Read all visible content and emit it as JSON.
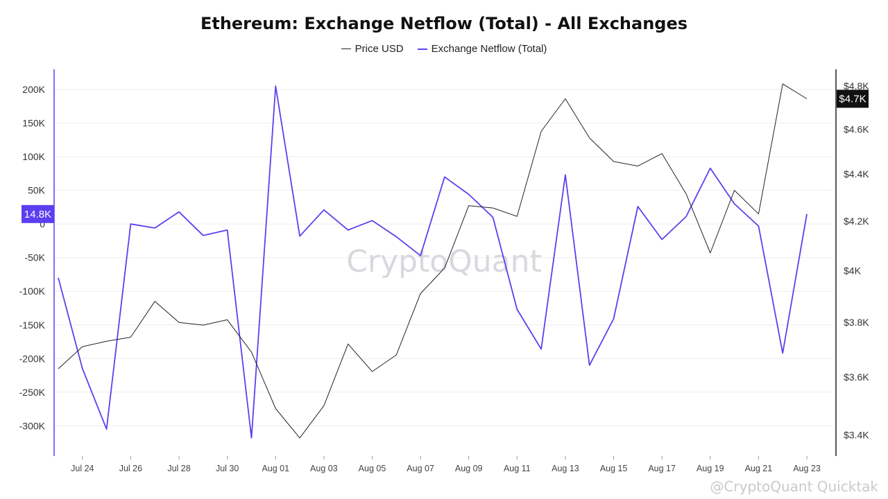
{
  "title": "Ethereum: Exchange Netflow (Total) - All Exchanges",
  "legend": {
    "price": "Price USD",
    "netflow": "Exchange Netflow (Total)"
  },
  "watermark": "CryptoQuant",
  "footer_mark": "@CryptoQuant Quicktak",
  "colors": {
    "price": "#222222",
    "netflow": "#5b3ff0",
    "grid": "#eeeeee"
  },
  "badges": {
    "netflow_last": "14.8K",
    "price_last": "$4.7K"
  },
  "chart_data": {
    "type": "line",
    "title": "Ethereum: Exchange Netflow (Total) - All Exchanges",
    "x_ticks": [
      "Jul 24",
      "Jul 26",
      "Jul 28",
      "Jul 30",
      "Aug 01",
      "Aug 03",
      "Aug 05",
      "Aug 07",
      "Aug 09",
      "Aug 11",
      "Aug 13",
      "Aug 15",
      "Aug 17",
      "Aug 19",
      "Aug 21",
      "Aug 23"
    ],
    "x": [
      "Jul 23",
      "Jul 24",
      "Jul 25",
      "Jul 26",
      "Jul 27",
      "Jul 28",
      "Jul 29",
      "Jul 30",
      "Jul 31",
      "Aug 01",
      "Aug 02",
      "Aug 03",
      "Aug 04",
      "Aug 05",
      "Aug 06",
      "Aug 07",
      "Aug 08",
      "Aug 09",
      "Aug 10",
      "Aug 11",
      "Aug 12",
      "Aug 13",
      "Aug 14",
      "Aug 15",
      "Aug 16",
      "Aug 17",
      "Aug 18",
      "Aug 19",
      "Aug 20",
      "Aug 21",
      "Aug 22",
      "Aug 23"
    ],
    "y_left": {
      "ticks": [
        "200K",
        "150K",
        "100K",
        "50K",
        "0",
        "-50K",
        "-100K",
        "-150K",
        "-200K",
        "-250K",
        "-300K"
      ],
      "range": [
        -345000,
        230000
      ]
    },
    "y_right": {
      "ticks": [
        "$4.8K",
        "$4.6K",
        "$4.4K",
        "$4.2K",
        "$4K",
        "$3.8K",
        "$3.6K",
        "$3.4K"
      ],
      "scale": "log",
      "range": [
        3330,
        4880
      ]
    },
    "series": [
      {
        "name": "Exchange Netflow (Total)",
        "axis": "left",
        "values": [
          -80000,
          -215000,
          -305000,
          0,
          -6000,
          18000,
          -17000,
          -9000,
          -318000,
          205000,
          -18000,
          21000,
          -9000,
          5000,
          -19000,
          -47000,
          70000,
          44000,
          10000,
          -127000,
          -186000,
          73000,
          -210000,
          -141000,
          26000,
          -23000,
          11000,
          83000,
          30000,
          -3000,
          -192000,
          14800
        ]
      },
      {
        "name": "Price USD",
        "axis": "right",
        "values": [
          3630,
          3710,
          3730,
          3745,
          3880,
          3800,
          3790,
          3810,
          3690,
          3490,
          3390,
          3500,
          3720,
          3620,
          3680,
          3910,
          4010,
          4265,
          4255,
          4220,
          4590,
          4740,
          4560,
          4455,
          4435,
          4490,
          4315,
          4070,
          4330,
          4230,
          4810,
          4740
        ]
      }
    ]
  }
}
